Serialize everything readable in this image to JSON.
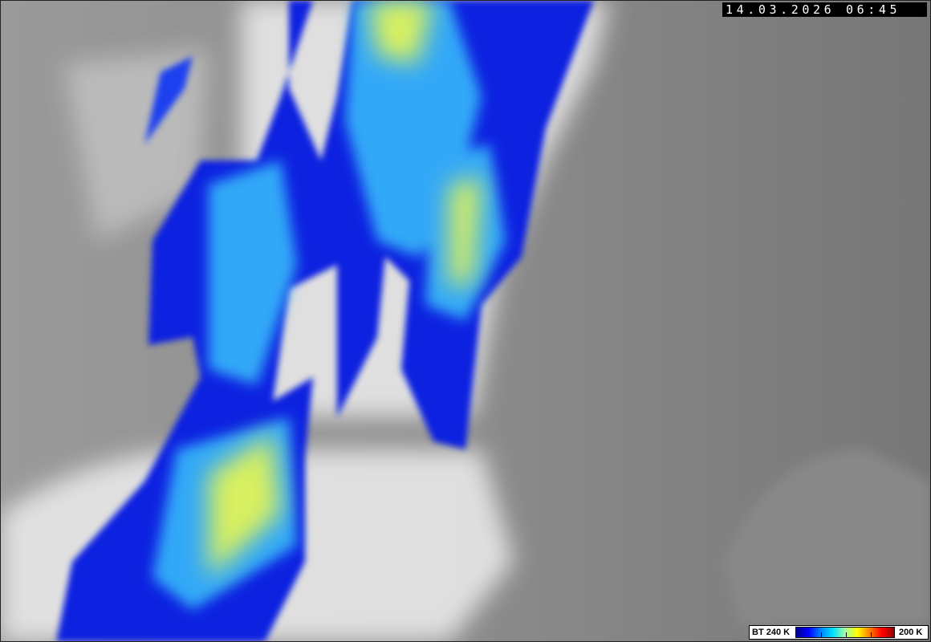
{
  "timestamp": "14.03.2026 06:45",
  "legend": {
    "label_min": "BT 240 K",
    "label_max": "200 K",
    "colors": [
      "#00008c",
      "#0000ff",
      "#0080ff",
      "#00e0ff",
      "#a0ffa0",
      "#ffff00",
      "#ff8000",
      "#ff0000",
      "#900000"
    ]
  }
}
